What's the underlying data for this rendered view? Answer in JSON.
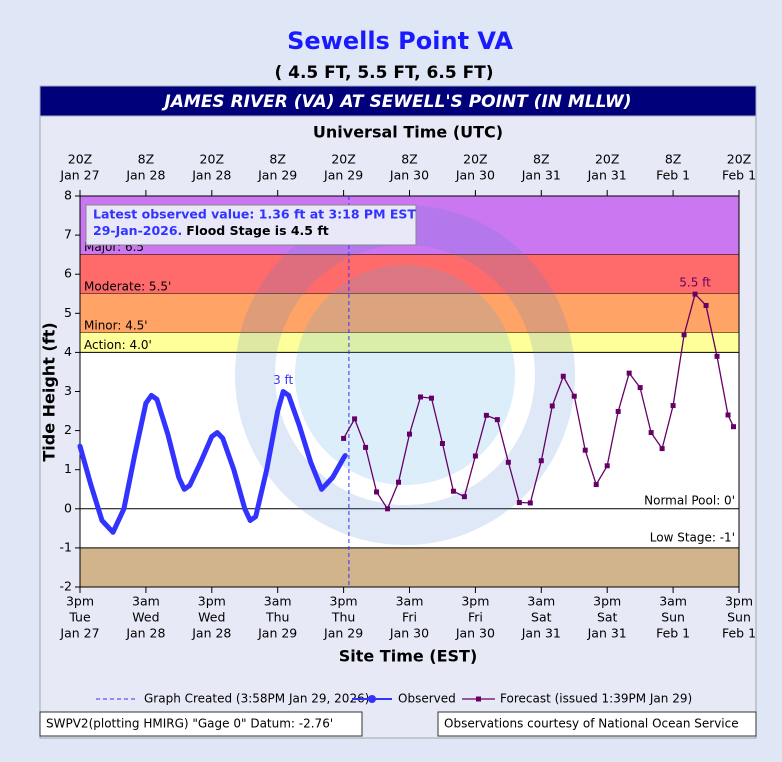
{
  "chart_data": {
    "type": "hydrograph",
    "title": "Sewells Point VA",
    "subtitle": "( 4.5 FT, 5.5 FT, 6.5 FT)",
    "banner": "JAMES RIVER (VA) AT SEWELL'S POINT (IN MLLW)",
    "x2_label": "Universal Time (UTC)",
    "x_label": "Site Time (EST)",
    "y_label": "Tide Height (ft)",
    "ylim": [
      -2,
      8
    ],
    "yticks": [
      -2,
      -1,
      0,
      1,
      2,
      3,
      4,
      5,
      6,
      7,
      8
    ],
    "xlim": [
      "Jan 27 15:00",
      "Feb 1 15:00"
    ],
    "xticks": [
      {
        "value": "Jan 27 15:00",
        "label": [
          "3pm",
          "Tue",
          "Jan 27"
        ]
      },
      {
        "value": "Jan 28 03:00",
        "label": [
          "3am",
          "Wed",
          "Jan 28"
        ]
      },
      {
        "value": "Jan 28 15:00",
        "label": [
          "3pm",
          "Wed",
          "Jan 28"
        ]
      },
      {
        "value": "Jan 29 03:00",
        "label": [
          "3am",
          "Thu",
          "Jan 29"
        ]
      },
      {
        "value": "Jan 29 15:00",
        "label": [
          "3pm",
          "Thu",
          "Jan 29"
        ]
      },
      {
        "value": "Jan 30 03:00",
        "label": [
          "3am",
          "Fri",
          "Jan 30"
        ]
      },
      {
        "value": "Jan 30 15:00",
        "label": [
          "3pm",
          "Fri",
          "Jan 30"
        ]
      },
      {
        "value": "Jan 31 03:00",
        "label": [
          "3am",
          "Sat",
          "Jan 31"
        ]
      },
      {
        "value": "Jan 31 15:00",
        "label": [
          "3pm",
          "Sat",
          "Jan 31"
        ]
      },
      {
        "value": "Feb 1 03:00",
        "label": [
          "3am",
          "Sun",
          "Feb 1"
        ]
      },
      {
        "value": "Feb 1 15:00",
        "label": [
          "3pm",
          "Sun",
          "Feb 1"
        ]
      }
    ],
    "x2ticks": [
      {
        "value": "Jan 27 15:00",
        "label": [
          "20Z",
          "Jan 27"
        ]
      },
      {
        "value": "Jan 28 03:00",
        "label": [
          "8Z",
          "Jan 28"
        ]
      },
      {
        "value": "Jan 28 15:00",
        "label": [
          "20Z",
          "Jan 28"
        ]
      },
      {
        "value": "Jan 29 03:00",
        "label": [
          "8Z",
          "Jan 29"
        ]
      },
      {
        "value": "Jan 29 15:00",
        "label": [
          "20Z",
          "Jan 29"
        ]
      },
      {
        "value": "Jan 30 03:00",
        "label": [
          "8Z",
          "Jan 30"
        ]
      },
      {
        "value": "Jan 30 15:00",
        "label": [
          "20Z",
          "Jan 30"
        ]
      },
      {
        "value": "Jan 31 03:00",
        "label": [
          "8Z",
          "Jan 31"
        ]
      },
      {
        "value": "Jan 31 15:00",
        "label": [
          "20Z",
          "Jan 31"
        ]
      },
      {
        "value": "Feb 1 03:00",
        "label": [
          "8Z",
          "Feb 1"
        ]
      },
      {
        "value": "Feb 1 15:00",
        "label": [
          "20Z",
          "Feb  1"
        ]
      }
    ],
    "stages": [
      {
        "label": "Major: 6.5'",
        "value": 6.5,
        "color": "#cc77f2"
      },
      {
        "label": "Moderate: 5.5'",
        "value": 5.5,
        "color": "#ff6b6b"
      },
      {
        "label": "Minor: 4.5'",
        "value": 4.5,
        "color": "#ffa366"
      },
      {
        "label": "Action: 4.0'",
        "value": 4.0,
        "color": "#ffff99"
      }
    ],
    "normal_pool": {
      "label": "Normal Pool: 0'",
      "value": 0
    },
    "low_stage": {
      "label": "Low Stage: -1'",
      "value": -1,
      "color": "#d2b48c"
    },
    "info": [
      "Latest observed value: 1.36 ft at 3:18 PM EST",
      "29-Jan-2026.",
      "Flood Stage is 4.5 ft"
    ],
    "graph_created": {
      "label": "Graph Created (3:58PM Jan 29, 2026)",
      "x": "Jan 29 15:58"
    },
    "series": [
      {
        "name": "Observed",
        "color": "#3333ff",
        "x": [
          "Jan 27 15:00",
          "Jan 27 17:00",
          "Jan 27 19:00",
          "Jan 27 21:00",
          "Jan 27 23:00",
          "Jan 28 01:00",
          "Jan 28 03:00",
          "Jan 28 04:00",
          "Jan 28 05:00",
          "Jan 28 07:00",
          "Jan 28 09:00",
          "Jan 28 10:00",
          "Jan 28 11:00",
          "Jan 28 13:00",
          "Jan 28 15:00",
          "Jan 28 16:00",
          "Jan 28 17:00",
          "Jan 28 19:00",
          "Jan 28 21:00",
          "Jan 28 22:00",
          "Jan 28 23:00",
          "Jan 29 01:00",
          "Jan 29 03:00",
          "Jan 29 04:00",
          "Jan 29 05:00",
          "Jan 29 07:00",
          "Jan 29 09:00",
          "Jan 29 11:00",
          "Jan 29 13:00",
          "Jan 29 15:00",
          "Jan 29 15:18"
        ],
        "values": [
          1.6,
          0.6,
          -0.3,
          -0.6,
          0.0,
          1.4,
          2.7,
          2.9,
          2.8,
          1.9,
          0.8,
          0.5,
          0.6,
          1.2,
          1.85,
          1.95,
          1.8,
          1.0,
          0.0,
          -0.3,
          -0.2,
          1.0,
          2.5,
          3.0,
          2.9,
          2.1,
          1.2,
          0.5,
          0.8,
          1.3,
          1.36
        ]
      },
      {
        "name": "Forecast (issued 1:39PM Jan 29)",
        "color": "#660066",
        "x": [
          "Jan 29 15:00",
          "Jan 29 17:00",
          "Jan 29 19:00",
          "Jan 29 21:00",
          "Jan 29 23:00",
          "Jan 30 01:00",
          "Jan 30 03:00",
          "Jan 30 05:00",
          "Jan 30 07:00",
          "Jan 30 09:00",
          "Jan 30 11:00",
          "Jan 30 13:00",
          "Jan 30 15:00",
          "Jan 30 17:00",
          "Jan 30 19:00",
          "Jan 30 21:00",
          "Jan 30 23:00",
          "Jan 31 01:00",
          "Jan 31 03:00",
          "Jan 31 05:00",
          "Jan 31 07:00",
          "Jan 31 09:00",
          "Jan 31 11:00",
          "Jan 31 13:00",
          "Jan 31 15:00",
          "Jan 31 17:00",
          "Jan 31 19:00",
          "Jan 31 21:00",
          "Jan 31 23:00",
          "Feb 1 01:00",
          "Feb 1 03:00",
          "Feb 1 05:00",
          "Feb 1 07:00",
          "Feb 1 09:00",
          "Feb 1 11:00",
          "Feb 1 13:00",
          "Feb 1 14:00"
        ],
        "values": [
          1.8,
          2.3,
          1.57,
          0.43,
          0.0,
          0.68,
          1.91,
          2.86,
          2.83,
          1.67,
          0.45,
          0.31,
          1.35,
          2.39,
          2.28,
          1.19,
          0.16,
          0.15,
          1.23,
          2.63,
          3.39,
          2.88,
          1.5,
          0.62,
          1.1,
          2.49,
          3.47,
          3.1,
          1.95,
          1.54,
          2.64,
          4.45,
          5.49,
          5.2,
          3.9,
          2.4,
          2.1
        ]
      }
    ],
    "annotations": [
      {
        "text": "3 ft",
        "x": "Jan 29 04:00",
        "y": 3,
        "color": "#3333ff"
      },
      {
        "text": "5.5 ft",
        "x": "Feb 1 07:00",
        "y": 5.5,
        "color": "#660066"
      }
    ],
    "footer_left": "SWPV2(plotting HMIRG) \"Gage 0\" Datum: -2.76'",
    "footer_right": "Observations courtesy of National Ocean Service"
  }
}
